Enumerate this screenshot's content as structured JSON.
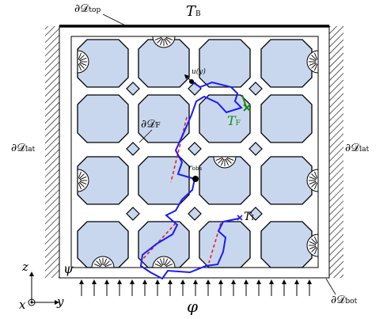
{
  "labels": {
    "d_top": "∂𝒟",
    "d_top_sub": "top",
    "t_b": "T",
    "t_b_sub": "B",
    "d_lat_left": "∂𝒟",
    "d_lat_left_sub": "lat",
    "d_lat_right": "∂𝒟",
    "d_lat_right_sub": "lat",
    "d_bot": "∂𝒟",
    "d_bot_sub": "bot",
    "d_f": "∂𝒟",
    "d_f_sub": "F",
    "t_f": "T",
    "t_f_sub": "F",
    "t_i": "T",
    "t_i_sub": "I",
    "psi": "ψ",
    "phi": "φ",
    "r_obs": "r",
    "r_obs_sub": "obs",
    "u_y": "u(y)",
    "axis_z": "z",
    "axis_y": "y",
    "axis_x": "x"
  },
  "colors": {
    "cell_fill": "#c9d7ee",
    "path": "#1a1aff",
    "dashed": "#e02020",
    "target": "#1a8a1a",
    "hatch": "#000000"
  },
  "legend_icons": [
    "sun-icon"
  ]
}
